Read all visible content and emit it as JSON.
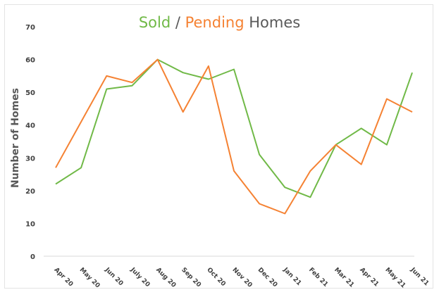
{
  "chart_data": {
    "type": "line",
    "title_parts": {
      "sold": "Sold",
      "sep": " / ",
      "pending": "Pending",
      "rest": " Homes"
    },
    "ylabel": "Number of Homes",
    "xlabel": "",
    "ylim": [
      0,
      70
    ],
    "yticks": [
      0,
      10,
      20,
      30,
      40,
      50,
      60,
      70
    ],
    "grid": false,
    "legend": "none",
    "categories": [
      "Apr 20",
      "May 20",
      "Jun 20",
      "July 20",
      "Aug 20",
      "Sep 20",
      "Oct 20",
      "Nov 20",
      "Dec 20",
      "Jan 21",
      "Feb 21",
      "Mar 21",
      "Apr 21",
      "May 21",
      "Jun 21"
    ],
    "series": [
      {
        "key": "sold",
        "color": "#70b947",
        "values": [
          22,
          27,
          51,
          52,
          60,
          56,
          54,
          57,
          31,
          21,
          18,
          34,
          39,
          34,
          56
        ]
      },
      {
        "key": "pending",
        "color": "#f58233",
        "values": [
          27,
          41,
          55,
          53,
          60,
          44,
          58,
          26,
          16,
          13,
          26,
          34,
          28,
          48,
          44
        ]
      }
    ]
  }
}
